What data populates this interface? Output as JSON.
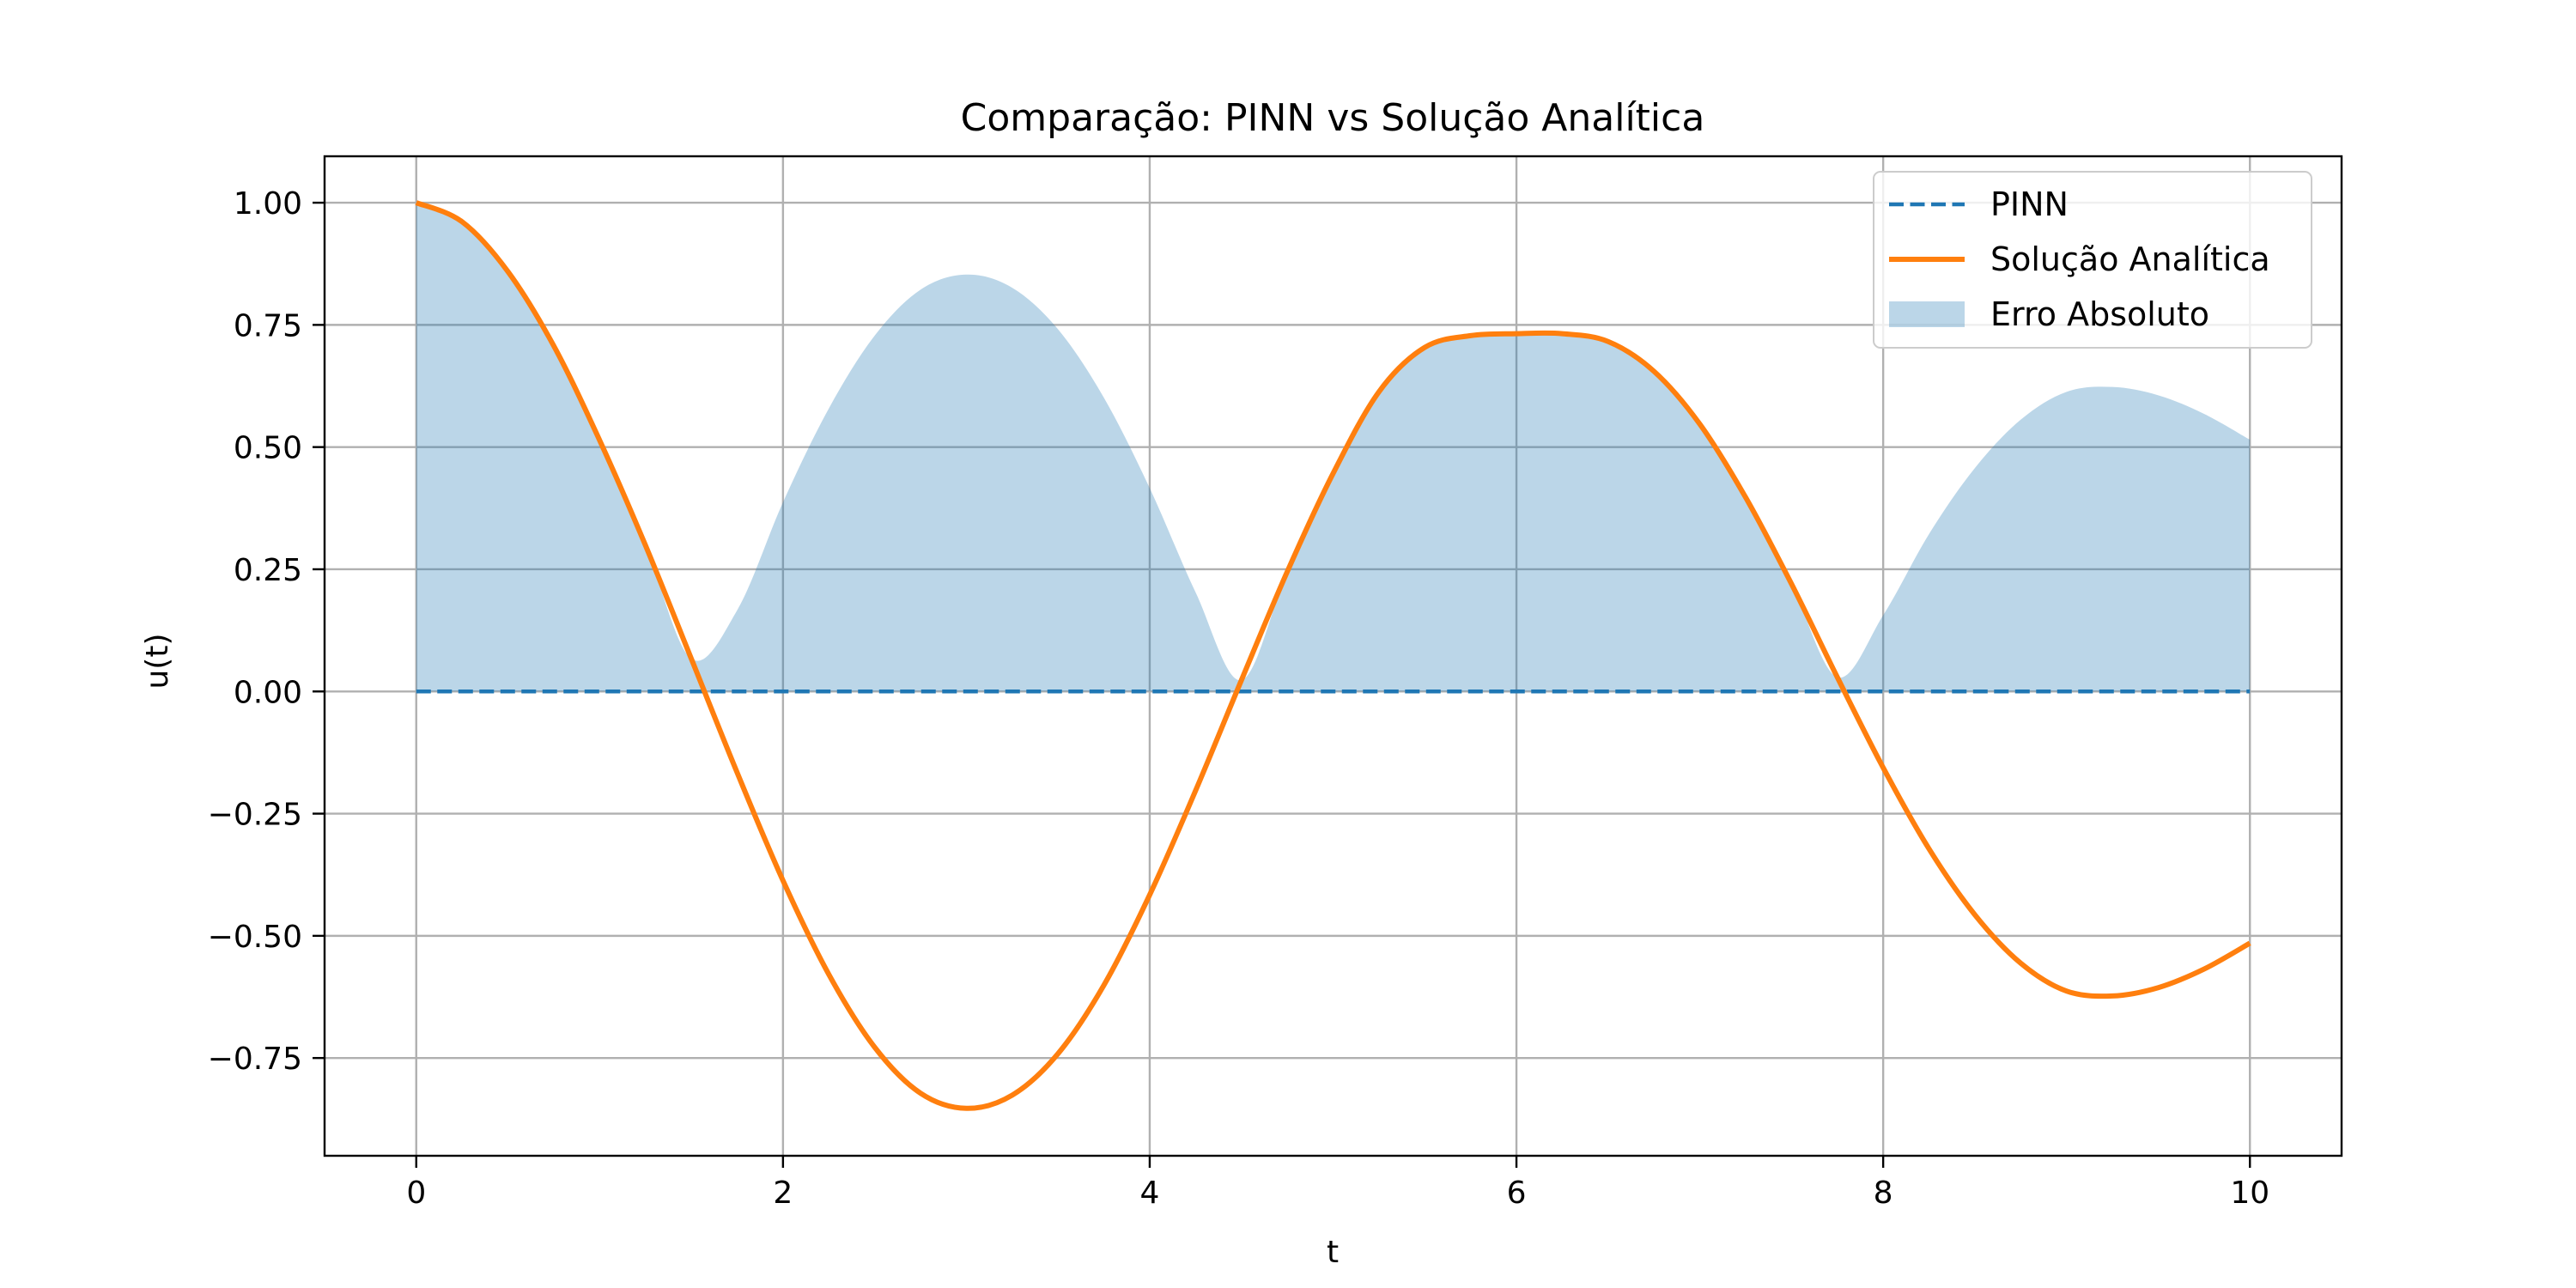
{
  "chart_data": {
    "type": "line",
    "title": "Comparação: PINN vs Solução Analítica",
    "xlabel": "t",
    "ylabel": "u(t)",
    "xlim": [
      -0.5,
      10.5
    ],
    "ylim": [
      -0.95,
      1.095
    ],
    "x_ticks": [
      0,
      2,
      4,
      6,
      8,
      10
    ],
    "x_tick_labels": [
      "0",
      "2",
      "4",
      "6",
      "8",
      "10"
    ],
    "y_ticks": [
      1.0,
      0.75,
      0.5,
      0.25,
      0.0,
      -0.25,
      -0.5,
      -0.75
    ],
    "y_tick_labels": [
      "1.00",
      "0.75",
      "0.50",
      "0.25",
      "0.00",
      "−0.25",
      "−0.50",
      "−0.75"
    ],
    "grid": true,
    "legend_position": "top-right",
    "series": [
      {
        "name": "PINN",
        "kind": "line",
        "style": "dashed",
        "color": "#1f77b4",
        "x": [
          0,
          10
        ],
        "y": [
          0,
          0
        ]
      },
      {
        "name": "Solução Analítica",
        "kind": "line",
        "style": "solid",
        "color": "#ff7f0e",
        "x": [
          0,
          0.25,
          0.5,
          0.75,
          1,
          1.25,
          1.5,
          1.75,
          2,
          2.25,
          2.5,
          2.75,
          3,
          3.25,
          3.5,
          3.75,
          4,
          4.25,
          4.5,
          4.75,
          5,
          5.25,
          5.5,
          5.75,
          6,
          6.25,
          6.5,
          6.75,
          7,
          7.25,
          7.5,
          7.75,
          8,
          8.25,
          8.5,
          8.75,
          9,
          9.25,
          9.5,
          9.75,
          10
        ],
        "y": [
          1.0,
          0.961,
          0.859,
          0.707,
          0.514,
          0.299,
          0.067,
          -0.166,
          -0.387,
          -0.579,
          -0.728,
          -0.822,
          -0.853,
          -0.826,
          -0.741,
          -0.601,
          -0.416,
          -0.203,
          0.023,
          0.245,
          0.446,
          0.613,
          0.704,
          0.728,
          0.732,
          0.732,
          0.716,
          0.655,
          0.547,
          0.397,
          0.22,
          0.029,
          -0.156,
          -0.322,
          -0.457,
          -0.556,
          -0.613,
          -0.623,
          -0.606,
          -0.568,
          -0.515
        ]
      },
      {
        "name": "Erro Absoluto",
        "kind": "area",
        "color": "#1f77b4",
        "opacity": 0.3,
        "x": [
          0,
          0.25,
          0.5,
          0.75,
          1,
          1.25,
          1.5,
          1.75,
          2,
          2.25,
          2.5,
          2.75,
          3,
          3.25,
          3.5,
          3.75,
          4,
          4.25,
          4.5,
          4.75,
          5,
          5.25,
          5.5,
          5.75,
          6,
          6.25,
          6.5,
          6.75,
          7,
          7.25,
          7.5,
          7.75,
          8,
          8.25,
          8.5,
          8.75,
          9,
          9.25,
          9.5,
          9.75,
          10
        ],
        "y": [
          1.0,
          0.961,
          0.859,
          0.707,
          0.514,
          0.299,
          0.067,
          0.166,
          0.387,
          0.579,
          0.728,
          0.822,
          0.853,
          0.826,
          0.741,
          0.601,
          0.416,
          0.203,
          0.023,
          0.245,
          0.446,
          0.613,
          0.704,
          0.728,
          0.732,
          0.732,
          0.716,
          0.655,
          0.547,
          0.397,
          0.22,
          0.029,
          0.156,
          0.322,
          0.457,
          0.556,
          0.613,
          0.623,
          0.606,
          0.568,
          0.515
        ]
      }
    ]
  }
}
